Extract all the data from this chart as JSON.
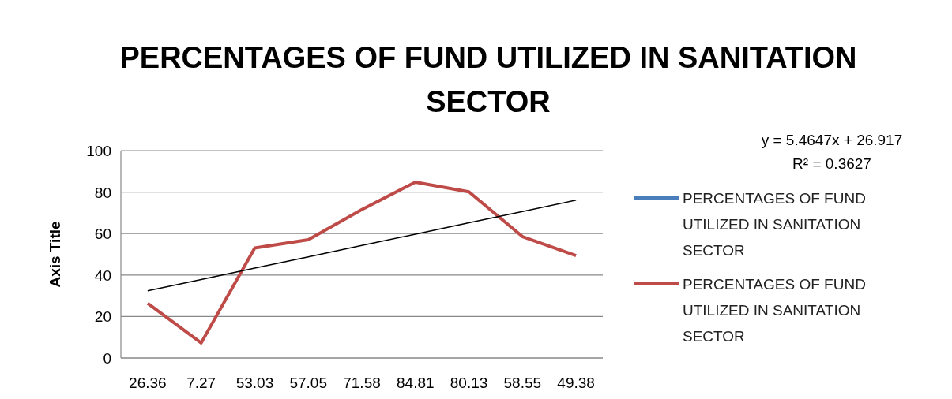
{
  "chart_data": {
    "type": "line",
    "title": "PERCENTAGES OF FUND UTILIZED IN SANITATION SECTOR",
    "ylabel": "Axis Title",
    "categories": [
      "26.36",
      "7.27",
      "53.03",
      "57.05",
      "71.58",
      "84.81",
      "80.13",
      "58.55",
      "49.38"
    ],
    "series": [
      {
        "name": "PERCENTAGES OF FUND UTILIZED IN SANITATION SECTOR",
        "color": "#4a7ebb",
        "values": [
          null,
          null,
          null,
          null,
          null,
          null,
          null,
          null,
          null
        ]
      },
      {
        "name": "PERCENTAGES OF FUND UTILIZED IN SANITATION SECTOR",
        "color": "#be4b48",
        "values": [
          26.36,
          7.27,
          53.03,
          57.05,
          71.58,
          84.81,
          80.13,
          58.55,
          49.38
        ]
      },
      {
        "type": "line",
        "color": "#000000",
        "values": [
          32.38,
          37.85,
          43.31,
          48.78,
          54.24,
          59.71,
          65.17,
          70.63,
          76.1
        ]
      }
    ],
    "annotations": [
      "y = 5.4647x + 26.917",
      "R² = 0.3627"
    ],
    "ylim": [
      0,
      100
    ],
    "yticks": [
      0,
      20,
      40,
      60,
      80,
      100
    ],
    "grid": "y",
    "legend": "right",
    "marker": "none",
    "line_style": "solid"
  }
}
